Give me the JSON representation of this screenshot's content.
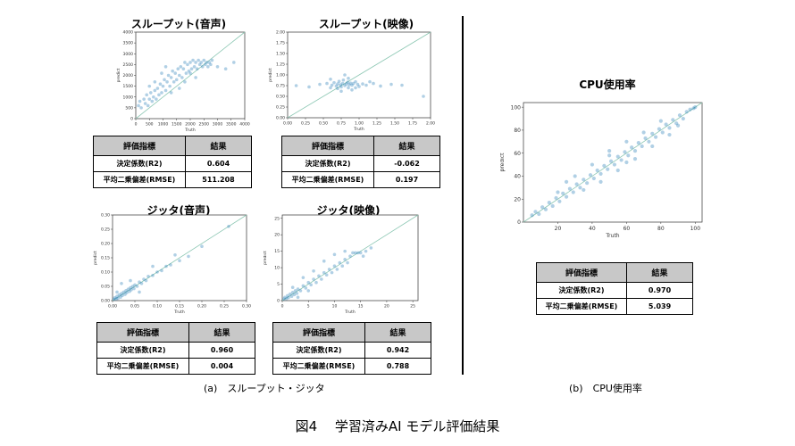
{
  "figure_caption": "図4　 学習済みAI モデル評価結果",
  "captions": {
    "a": "(a)　スループット・ジッタ",
    "b": "(b)　CPU使用率"
  },
  "table_header": {
    "metric": "評価指標",
    "result": "結果"
  },
  "colors": {
    "point": "#1f77b4",
    "diag": "#8cc7b3",
    "header_bg": "#c8c8c8"
  },
  "chart_data": [
    {
      "id": "tp_audio",
      "type": "scatter",
      "title": "スループット(音声)",
      "xlabel": "Truth",
      "ylabel": "predict",
      "xlim": [
        0,
        4000
      ],
      "ylim": [
        0,
        4000
      ],
      "xticks": [
        0,
        500,
        1000,
        1500,
        2000,
        2500,
        3000,
        3500,
        4000
      ],
      "yticks": [
        0,
        500,
        1000,
        1500,
        2000,
        2500,
        3000,
        3500,
        4000
      ],
      "xtick_labels": [
        "0",
        "500",
        "1000",
        "1500",
        "2000",
        "2500",
        "3000",
        "3500",
        "4000"
      ],
      "ytick_labels": [
        "0",
        "500",
        "1000",
        "1500",
        "2000",
        "2500",
        "3000",
        "3500",
        "4000"
      ],
      "points": [
        [
          100,
          600
        ],
        [
          150,
          800
        ],
        [
          200,
          500
        ],
        [
          300,
          900
        ],
        [
          350,
          700
        ],
        [
          400,
          1100
        ],
        [
          450,
          600
        ],
        [
          500,
          900
        ],
        [
          550,
          1200
        ],
        [
          600,
          800
        ],
        [
          650,
          1000
        ],
        [
          700,
          1300
        ],
        [
          750,
          900
        ],
        [
          800,
          1400
        ],
        [
          850,
          1100
        ],
        [
          900,
          1600
        ],
        [
          950,
          1200
        ],
        [
          1000,
          1500
        ],
        [
          1050,
          1800
        ],
        [
          1100,
          1300
        ],
        [
          1150,
          1700
        ],
        [
          1200,
          2000
        ],
        [
          1250,
          1500
        ],
        [
          1300,
          1900
        ],
        [
          1350,
          2200
        ],
        [
          1400,
          1700
        ],
        [
          1450,
          2100
        ],
        [
          1500,
          1800
        ],
        [
          1550,
          2300
        ],
        [
          1600,
          2000
        ],
        [
          1650,
          2400
        ],
        [
          1700,
          1900
        ],
        [
          1750,
          2300
        ],
        [
          1800,
          2600
        ],
        [
          1850,
          2100
        ],
        [
          1900,
          2500
        ],
        [
          1950,
          2200
        ],
        [
          2000,
          2600
        ],
        [
          2050,
          2300
        ],
        [
          2100,
          2700
        ],
        [
          2150,
          2400
        ],
        [
          2200,
          2600
        ],
        [
          2250,
          2300
        ],
        [
          2300,
          2700
        ],
        [
          2350,
          2500
        ],
        [
          2400,
          2600
        ],
        [
          2450,
          2400
        ],
        [
          2500,
          2700
        ],
        [
          2550,
          2500
        ],
        [
          2600,
          2600
        ],
        [
          2650,
          2400
        ],
        [
          2700,
          2600
        ],
        [
          2750,
          2500
        ],
        [
          2800,
          2700
        ],
        [
          1100,
          2400
        ],
        [
          1300,
          1200
        ],
        [
          1600,
          1400
        ],
        [
          2000,
          2100
        ],
        [
          2200,
          1900
        ],
        [
          1800,
          1700
        ],
        [
          3000,
          2400
        ],
        [
          3300,
          2300
        ],
        [
          3600,
          2600
        ],
        [
          700,
          1700
        ],
        [
          500,
          1500
        ],
        [
          950,
          2100
        ]
      ],
      "table": [
        [
          "決定係数(R2)",
          "0.604"
        ],
        [
          "平均二乗偏差(RMSE)",
          "511.208"
        ]
      ]
    },
    {
      "id": "tp_video",
      "type": "scatter",
      "title": "スループット(映像)",
      "xlabel": "Truth",
      "ylabel": "predict",
      "xlim": [
        0,
        2.0
      ],
      "ylim": [
        0,
        2.0
      ],
      "xticks": [
        0,
        0.25,
        0.5,
        0.75,
        1.0,
        1.25,
        1.5,
        1.75,
        2.0
      ],
      "yticks": [
        0,
        0.25,
        0.5,
        0.75,
        1.0,
        1.25,
        1.5,
        1.75,
        2.0
      ],
      "xtick_labels": [
        "0.00",
        "0.25",
        "0.50",
        "0.75",
        "1.00",
        "1.25",
        "1.50",
        "1.75",
        "2.00"
      ],
      "ytick_labels": [
        "0.00",
        "0.25",
        "0.50",
        "0.75",
        "1.00",
        "1.25",
        "1.50",
        "1.75",
        "2.00"
      ],
      "points": [
        [
          0.12,
          0.75
        ],
        [
          0.3,
          0.72
        ],
        [
          0.45,
          0.78
        ],
        [
          0.55,
          0.8
        ],
        [
          0.6,
          0.7
        ],
        [
          0.62,
          0.76
        ],
        [
          0.65,
          0.82
        ],
        [
          0.68,
          0.74
        ],
        [
          0.7,
          0.79
        ],
        [
          0.72,
          0.85
        ],
        [
          0.74,
          0.77
        ],
        [
          0.75,
          0.72
        ],
        [
          0.77,
          0.8
        ],
        [
          0.78,
          0.88
        ],
        [
          0.8,
          0.75
        ],
        [
          0.82,
          0.79
        ],
        [
          0.84,
          0.83
        ],
        [
          0.85,
          0.7
        ],
        [
          0.86,
          0.77
        ],
        [
          0.88,
          0.81
        ],
        [
          0.9,
          0.76
        ],
        [
          0.92,
          0.8
        ],
        [
          0.95,
          0.84
        ],
        [
          0.98,
          0.78
        ],
        [
          1.0,
          0.73
        ],
        [
          1.05,
          0.79
        ],
        [
          1.1,
          0.76
        ],
        [
          1.2,
          0.8
        ],
        [
          1.3,
          0.74
        ],
        [
          1.45,
          0.78
        ],
        [
          1.6,
          0.76
        ],
        [
          1.9,
          0.5
        ],
        [
          0.8,
          1.0
        ],
        [
          0.75,
          0.62
        ],
        [
          0.9,
          0.65
        ],
        [
          0.7,
          0.68
        ],
        [
          0.85,
          0.92
        ],
        [
          1.15,
          0.84
        ],
        [
          0.6,
          0.9
        ],
        [
          0.95,
          0.7
        ]
      ],
      "table": [
        [
          "決定係数(R2)",
          "-0.062"
        ],
        [
          "平均二乗偏差(RMSE)",
          "0.197"
        ]
      ]
    },
    {
      "id": "jitter_audio",
      "type": "scatter",
      "title": "ジッタ(音声)",
      "xlabel": "Truth",
      "ylabel": "predict",
      "xlim": [
        0,
        0.3
      ],
      "ylim": [
        0,
        0.3
      ],
      "xticks": [
        0,
        0.05,
        0.1,
        0.15,
        0.2,
        0.25,
        0.3
      ],
      "yticks": [
        0,
        0.05,
        0.1,
        0.15,
        0.2,
        0.25,
        0.3
      ],
      "xtick_labels": [
        "0.00",
        "0.05",
        "0.10",
        "0.15",
        "0.20",
        "0.25",
        "0.30"
      ],
      "ytick_labels": [
        "0.00",
        "0.05",
        "0.10",
        "0.15",
        "0.20",
        "0.25",
        "0.30"
      ],
      "points": [
        [
          0.003,
          0.005
        ],
        [
          0.005,
          0.01
        ],
        [
          0.008,
          0.006
        ],
        [
          0.01,
          0.015
        ],
        [
          0.012,
          0.008
        ],
        [
          0.015,
          0.02
        ],
        [
          0.018,
          0.012
        ],
        [
          0.02,
          0.025
        ],
        [
          0.022,
          0.018
        ],
        [
          0.025,
          0.03
        ],
        [
          0.028,
          0.022
        ],
        [
          0.03,
          0.035
        ],
        [
          0.032,
          0.028
        ],
        [
          0.035,
          0.04
        ],
        [
          0.038,
          0.032
        ],
        [
          0.04,
          0.045
        ],
        [
          0.042,
          0.038
        ],
        [
          0.045,
          0.05
        ],
        [
          0.048,
          0.042
        ],
        [
          0.05,
          0.055
        ],
        [
          0.055,
          0.05
        ],
        [
          0.06,
          0.065
        ],
        [
          0.065,
          0.06
        ],
        [
          0.07,
          0.075
        ],
        [
          0.075,
          0.07
        ],
        [
          0.08,
          0.085
        ],
        [
          0.09,
          0.088
        ],
        [
          0.1,
          0.1
        ],
        [
          0.11,
          0.105
        ],
        [
          0.12,
          0.12
        ],
        [
          0.13,
          0.125
        ],
        [
          0.15,
          0.14
        ],
        [
          0.17,
          0.155
        ],
        [
          0.09,
          0.12
        ],
        [
          0.14,
          0.16
        ],
        [
          0.2,
          0.19
        ],
        [
          0.26,
          0.26
        ],
        [
          0.02,
          0.06
        ],
        [
          0.04,
          0.07
        ],
        [
          0.06,
          0.03
        ],
        [
          0.01,
          0.03
        ]
      ],
      "table": [
        [
          "決定係数(R2)",
          "0.960"
        ],
        [
          "平均二乗偏差(RMSE)",
          "0.004"
        ]
      ]
    },
    {
      "id": "jitter_video",
      "type": "scatter",
      "title": "ジッタ(映像)",
      "xlabel": "Truth",
      "ylabel": "predict",
      "xlim": [
        0,
        26
      ],
      "ylim": [
        0,
        26
      ],
      "xticks": [
        0,
        5,
        10,
        15,
        20,
        25
      ],
      "yticks": [
        0,
        5,
        10,
        15,
        20,
        25
      ],
      "xtick_labels": [
        "0",
        "5",
        "10",
        "15",
        "20",
        "25"
      ],
      "ytick_labels": [
        "0",
        "5",
        "10",
        "15",
        "20",
        "25"
      ],
      "points": [
        [
          0.3,
          0.5
        ],
        [
          0.5,
          1
        ],
        [
          0.8,
          0.6
        ],
        [
          1,
          1.5
        ],
        [
          1.2,
          0.9
        ],
        [
          1.5,
          2
        ],
        [
          1.8,
          1.3
        ],
        [
          2,
          2.5
        ],
        [
          2.3,
          1.8
        ],
        [
          2.5,
          3
        ],
        [
          2.8,
          2.2
        ],
        [
          3,
          3.5
        ],
        [
          3.5,
          3
        ],
        [
          4,
          4.5
        ],
        [
          4.5,
          3.8
        ],
        [
          5,
          5.5
        ],
        [
          5.5,
          4.8
        ],
        [
          6,
          6.5
        ],
        [
          6.5,
          5.5
        ],
        [
          7,
          7.5
        ],
        [
          7.5,
          6.5
        ],
        [
          8,
          8.5
        ],
        [
          8.5,
          7.8
        ],
        [
          9,
          9.5
        ],
        [
          9.5,
          8.5
        ],
        [
          10,
          10.5
        ],
        [
          10.5,
          9.5
        ],
        [
          11,
          11.5
        ],
        [
          11.5,
          10.5
        ],
        [
          12,
          12.5
        ],
        [
          12.5,
          11.5
        ],
        [
          13,
          13.5
        ],
        [
          13.5,
          14.5
        ],
        [
          14,
          14.5
        ],
        [
          14.5,
          14.5
        ],
        [
          15,
          14.5
        ],
        [
          15.5,
          13.5
        ],
        [
          16,
          15
        ],
        [
          17,
          16
        ],
        [
          8,
          12
        ],
        [
          10,
          14
        ],
        [
          4,
          7
        ],
        [
          6,
          9
        ],
        [
          2,
          4
        ],
        [
          12,
          15
        ],
        [
          3,
          1
        ],
        [
          5,
          3
        ]
      ],
      "table": [
        [
          "決定係数(R2)",
          "0.942"
        ],
        [
          "平均二乗偏差(RMSE)",
          "0.788"
        ]
      ]
    },
    {
      "id": "cpu",
      "type": "scatter",
      "title": "CPU使用率",
      "xlabel": "Truth",
      "ylabel": "predict",
      "xlim": [
        0,
        104
      ],
      "ylim": [
        0,
        104
      ],
      "xticks": [
        20,
        40,
        60,
        80,
        100
      ],
      "yticks": [
        0,
        20,
        40,
        60,
        80,
        100
      ],
      "xtick_labels": [
        "20",
        "40",
        "60",
        "80",
        "100"
      ],
      "ytick_labels": [
        "0",
        "20",
        "40",
        "60",
        "80",
        "100"
      ],
      "points": [
        [
          5,
          6
        ],
        [
          7,
          9
        ],
        [
          9,
          7
        ],
        [
          11,
          13
        ],
        [
          13,
          11
        ],
        [
          15,
          17
        ],
        [
          17,
          14
        ],
        [
          19,
          21
        ],
        [
          21,
          18
        ],
        [
          23,
          25
        ],
        [
          25,
          22
        ],
        [
          27,
          29
        ],
        [
          29,
          26
        ],
        [
          31,
          33
        ],
        [
          33,
          30
        ],
        [
          35,
          37
        ],
        [
          37,
          34
        ],
        [
          39,
          41
        ],
        [
          41,
          38
        ],
        [
          43,
          45
        ],
        [
          45,
          42
        ],
        [
          47,
          49
        ],
        [
          49,
          46
        ],
        [
          51,
          53
        ],
        [
          53,
          50
        ],
        [
          55,
          57
        ],
        [
          57,
          54
        ],
        [
          59,
          61
        ],
        [
          61,
          58
        ],
        [
          63,
          65
        ],
        [
          65,
          62
        ],
        [
          67,
          69
        ],
        [
          69,
          66
        ],
        [
          71,
          73
        ],
        [
          73,
          70
        ],
        [
          75,
          77
        ],
        [
          77,
          74
        ],
        [
          79,
          81
        ],
        [
          81,
          78
        ],
        [
          83,
          85
        ],
        [
          85,
          82
        ],
        [
          87,
          89
        ],
        [
          89,
          86
        ],
        [
          91,
          93
        ],
        [
          93,
          90
        ],
        [
          95,
          96
        ],
        [
          97,
          98
        ],
        [
          99,
          99
        ],
        [
          100,
          100
        ],
        [
          30,
          40
        ],
        [
          40,
          50
        ],
        [
          50,
          62
        ],
        [
          60,
          70
        ],
        [
          70,
          78
        ],
        [
          45,
          35
        ],
        [
          55,
          45
        ],
        [
          65,
          55
        ],
        [
          75,
          66
        ],
        [
          85,
          76
        ],
        [
          25,
          35
        ],
        [
          35,
          28
        ],
        [
          80,
          88
        ],
        [
          90,
          84
        ],
        [
          20,
          26
        ],
        [
          60,
          52
        ],
        [
          50,
          58
        ]
      ],
      "table": [
        [
          "決定係数(R2)",
          "0.970"
        ],
        [
          "平均二乗偏差(RMSE)",
          "5.039"
        ]
      ]
    }
  ]
}
